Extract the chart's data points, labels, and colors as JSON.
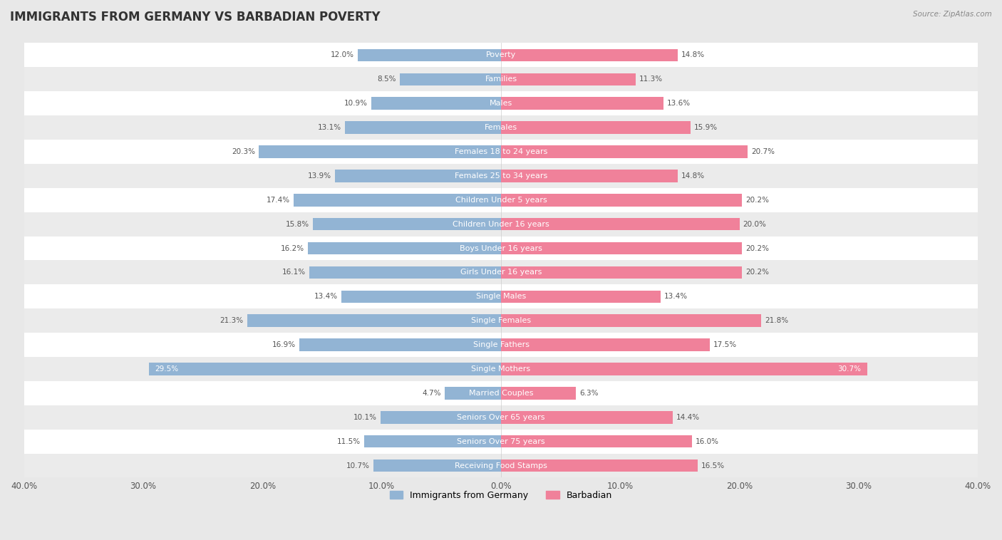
{
  "title": "IMMIGRANTS FROM GERMANY VS BARBADIAN POVERTY",
  "source": "Source: ZipAtlas.com",
  "categories": [
    "Poverty",
    "Families",
    "Males",
    "Females",
    "Females 18 to 24 years",
    "Females 25 to 34 years",
    "Children Under 5 years",
    "Children Under 16 years",
    "Boys Under 16 years",
    "Girls Under 16 years",
    "Single Males",
    "Single Females",
    "Single Fathers",
    "Single Mothers",
    "Married Couples",
    "Seniors Over 65 years",
    "Seniors Over 75 years",
    "Receiving Food Stamps"
  ],
  "left_values": [
    12.0,
    8.5,
    10.9,
    13.1,
    20.3,
    13.9,
    17.4,
    15.8,
    16.2,
    16.1,
    13.4,
    21.3,
    16.9,
    29.5,
    4.7,
    10.1,
    11.5,
    10.7
  ],
  "right_values": [
    14.8,
    11.3,
    13.6,
    15.9,
    20.7,
    14.8,
    20.2,
    20.0,
    20.2,
    20.2,
    13.4,
    21.8,
    17.5,
    30.7,
    6.3,
    14.4,
    16.0,
    16.5
  ],
  "left_color": "#92b4d4",
  "right_color": "#f0819a",
  "left_label": "Immigrants from Germany",
  "right_label": "Barbadian",
  "axis_max": 40.0,
  "background_color": "#e8e8e8",
  "row_color_even": "#ffffff",
  "row_color_odd": "#ebebeb",
  "title_fontsize": 12,
  "label_fontsize": 8.0,
  "value_fontsize": 7.5
}
